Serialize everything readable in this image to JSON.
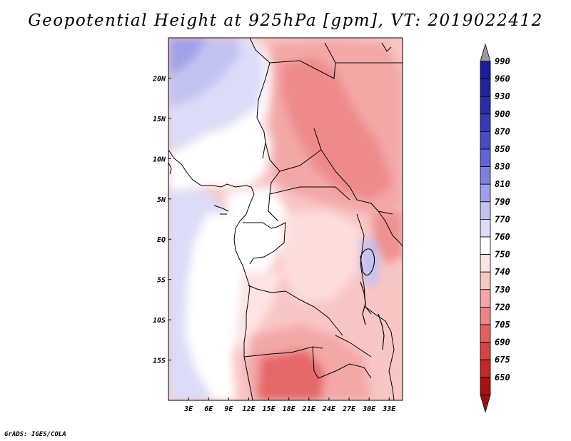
{
  "title": "Geopotential Height at 925hPa [gpm], VT: 2019022412",
  "credit": "GrADS: IGES/COLA",
  "map": {
    "lat_range": [
      -20,
      25
    ],
    "lon_range": [
      0,
      35
    ],
    "lat_ticks": [
      {
        "lat": 20,
        "label": "20N"
      },
      {
        "lat": 15,
        "label": "15N"
      },
      {
        "lat": 10,
        "label": "10N"
      },
      {
        "lat": 5,
        "label": "5N"
      },
      {
        "lat": 0,
        "label": "EQ"
      },
      {
        "lat": -5,
        "label": "5S"
      },
      {
        "lat": -10,
        "label": "10S"
      },
      {
        "lat": -15,
        "label": "15S"
      }
    ],
    "lon_ticks": [
      {
        "lon": 3,
        "label": "3E"
      },
      {
        "lon": 6,
        "label": "6E"
      },
      {
        "lon": 9,
        "label": "9E"
      },
      {
        "lon": 12,
        "label": "12E"
      },
      {
        "lon": 15,
        "label": "15E"
      },
      {
        "lon": 18,
        "label": "18E"
      },
      {
        "lon": 21,
        "label": "21E"
      },
      {
        "lon": 24,
        "label": "24E"
      },
      {
        "lon": 27,
        "label": "27E"
      },
      {
        "lon": 30,
        "label": "30E"
      },
      {
        "lon": 33,
        "label": "33E"
      }
    ]
  },
  "colorbar": {
    "levels": [
      {
        "label": "990",
        "color": "#1c1c9c"
      },
      {
        "label": "960",
        "color": "#23239f"
      },
      {
        "label": "930",
        "color": "#2c2cab"
      },
      {
        "label": "900",
        "color": "#3838b8"
      },
      {
        "label": "870",
        "color": "#4a4ac6"
      },
      {
        "label": "850",
        "color": "#6262d3"
      },
      {
        "label": "830",
        "color": "#7f7fe0"
      },
      {
        "label": "810",
        "color": "#a0a0ea"
      },
      {
        "label": "790",
        "color": "#c2c2f2"
      },
      {
        "label": "770",
        "color": "#dcdcf8"
      },
      {
        "label": "760",
        "color": "#ffffff"
      },
      {
        "label": "750",
        "color": "#fde3e3"
      },
      {
        "label": "740",
        "color": "#f9c6c6"
      },
      {
        "label": "730",
        "color": "#f3a7a7"
      },
      {
        "label": "720",
        "color": "#ec8585"
      },
      {
        "label": "705",
        "color": "#e26060"
      },
      {
        "label": "690",
        "color": "#d84242"
      },
      {
        "label": "675",
        "color": "#c52828"
      },
      {
        "label": "650",
        "color": "#a81212"
      }
    ],
    "top_arrow_color": "#9a9a9a",
    "bottom_arrow_color": "#9c1010"
  }
}
